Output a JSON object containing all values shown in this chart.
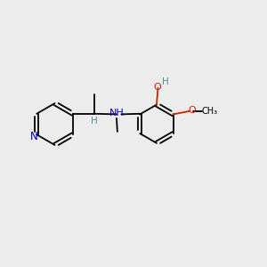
{
  "background_color": "#ececec",
  "bond_color": "#000000",
  "nitrogen_color": "#0000cc",
  "oxygen_color": "#cc2200",
  "oh_color": "#4a9090",
  "figsize": [
    3.0,
    3.0
  ],
  "dpi": 100,
  "xlim": [
    0,
    10
  ],
  "ylim": [
    0,
    10
  ]
}
